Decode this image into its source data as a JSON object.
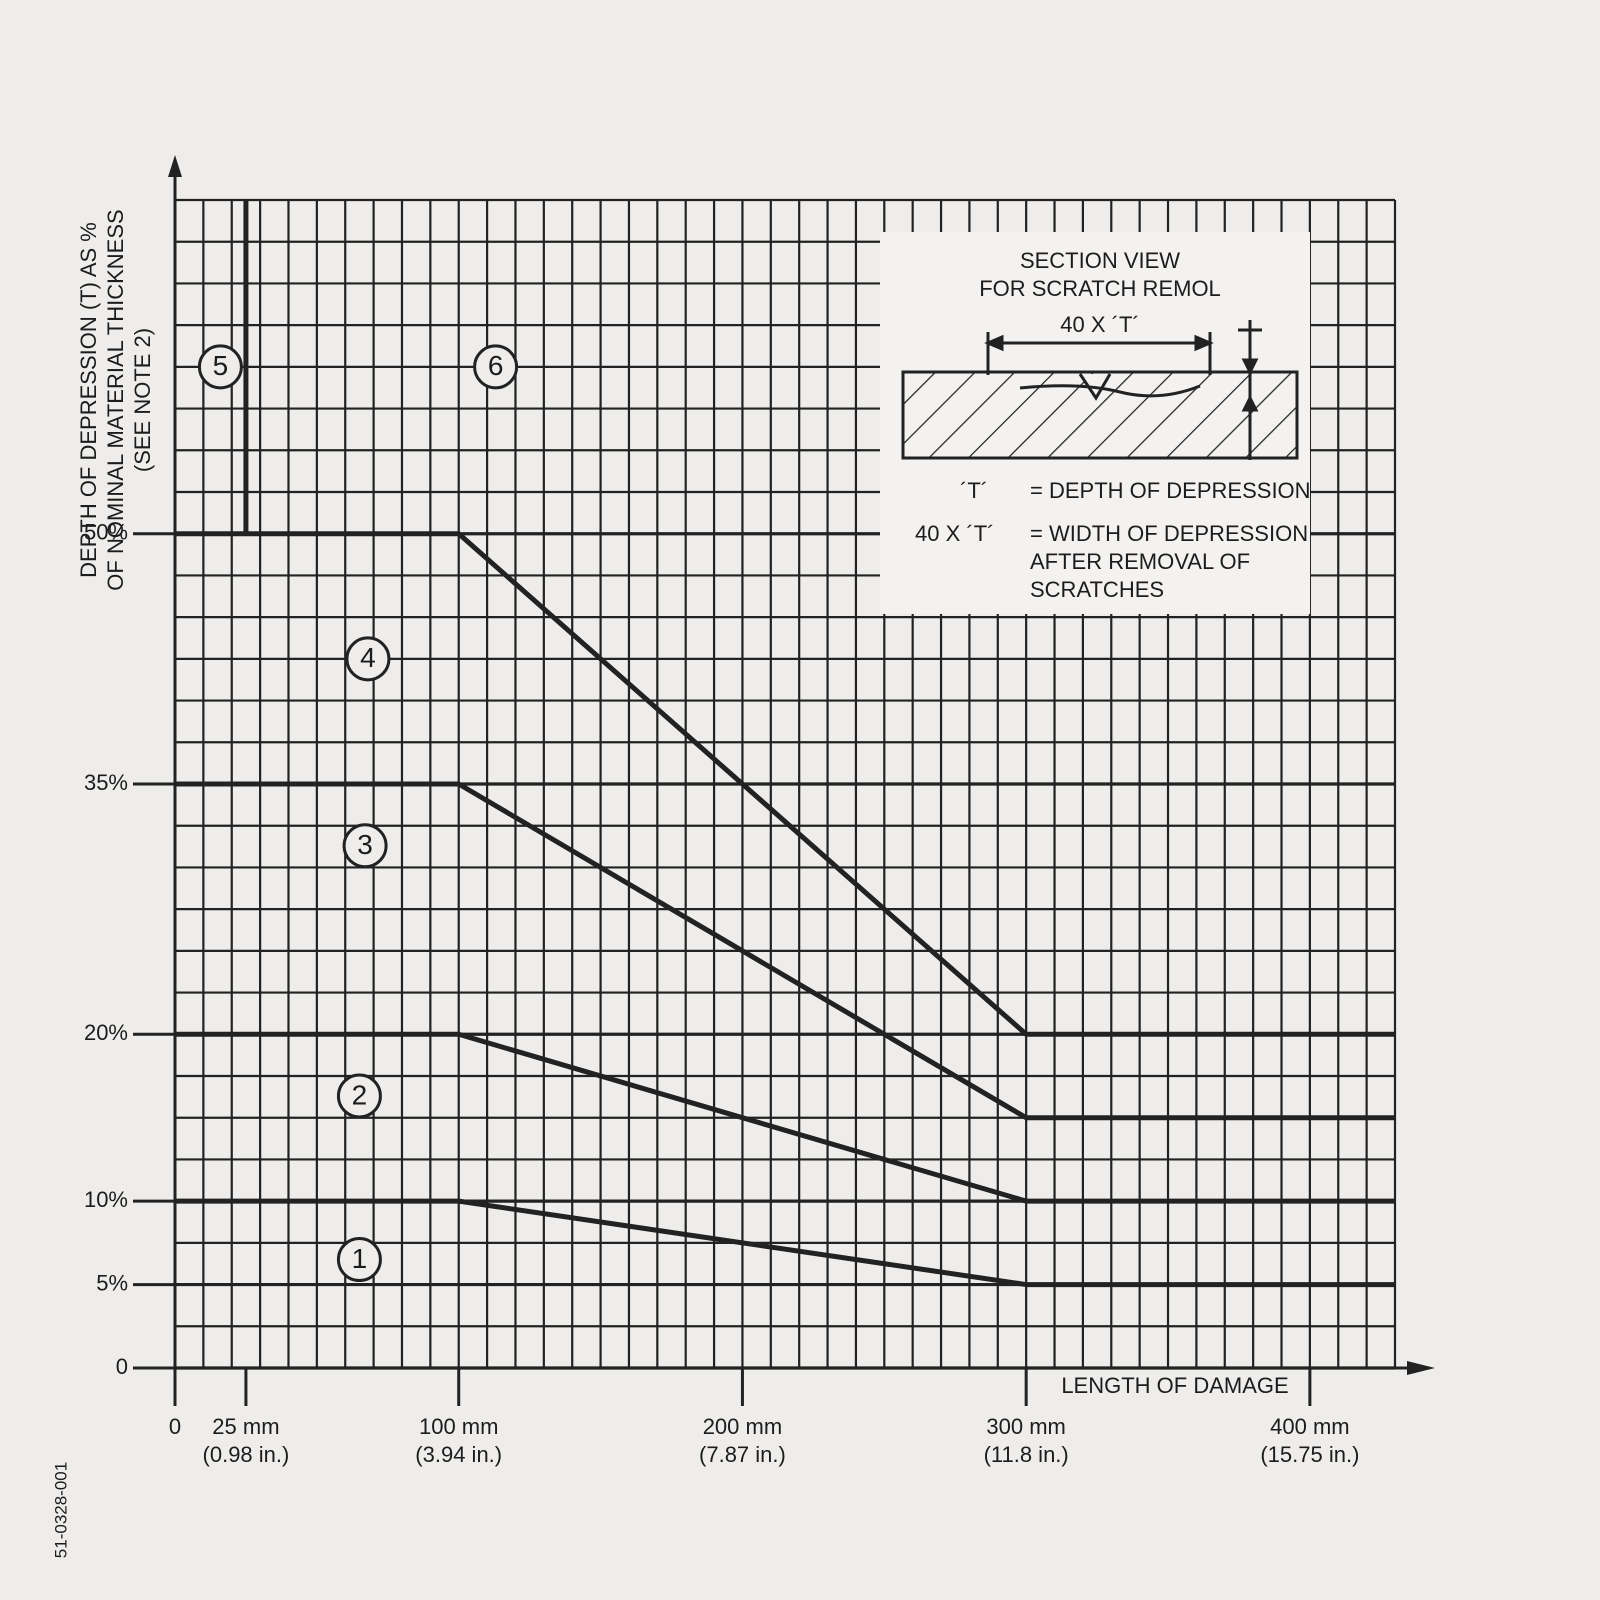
{
  "chart_data": {
    "type": "line",
    "y_axis_title": [
      "DEPTH OF DEPRESSION (T) AS %",
      "OF NOMINAL MATERIAL THICKNESS",
      "(SEE NOTE 2)"
    ],
    "x_axis_title": "LENGTH OF DAMAGE",
    "figure_id": "51-0328-001",
    "xlim": [
      0,
      430
    ],
    "ylim": [
      0,
      70
    ],
    "xticks": [
      0,
      {
        "value": 25,
        "label": "25 mm"
      },
      {
        "value": 100,
        "label": "100 mm"
      },
      {
        "value": 200,
        "label": "200 mm"
      },
      {
        "value": 300,
        "label": "300 mm"
      },
      {
        "value": 400,
        "label": "400 mm"
      }
    ],
    "xtick_inch_labels": [
      null,
      "(0.98 in.)",
      "(3.94 in.)",
      "(7.87 in.)",
      "(11.8 in.)",
      "(15.75 in.)"
    ],
    "yticks": [
      0,
      {
        "value": 5,
        "label": "5%"
      },
      {
        "value": 10,
        "label": "10%"
      },
      {
        "value": 20,
        "label": "20%"
      },
      {
        "value": 35,
        "label": "35%"
      },
      {
        "value": 50,
        "label": "50%"
      }
    ],
    "grid": true,
    "minor_grid": {
      "x_step": 10,
      "y_step": 2.5
    },
    "color": "#222222",
    "series": [
      {
        "x": [
          0,
          100,
          300,
          430
        ],
        "values": [
          10,
          10,
          5,
          5
        ]
      },
      {
        "x": [
          0,
          100,
          300,
          430
        ],
        "values": [
          20,
          20,
          10,
          10
        ]
      },
      {
        "x": [
          0,
          100,
          300,
          430
        ],
        "values": [
          35,
          35,
          15,
          15
        ]
      },
      {
        "x": [
          0,
          100,
          300,
          430
        ],
        "values": [
          50,
          50,
          20,
          20
        ]
      },
      {
        "x": [
          25,
          25
        ],
        "values": [
          50,
          70
        ]
      }
    ],
    "annotations": [
      {
        "text": "1",
        "x": 65,
        "y": 6.5
      },
      {
        "text": "2",
        "x": 65,
        "y": 16.3
      },
      {
        "text": "3",
        "x": 67,
        "y": 31.3
      },
      {
        "text": "4",
        "x": 68,
        "y": 42.5
      },
      {
        "text": "5",
        "x": 16,
        "y": 60
      },
      {
        "text": "6",
        "x": 113,
        "y": 60
      }
    ],
    "inset": {
      "title": [
        "SECTION VIEW",
        "FOR SCRATCH REMOL"
      ],
      "dimension": "40 X ´T´",
      "legend": [
        {
          "key": "´T´",
          "text": "= DEPTH OF DEPRESSION"
        },
        {
          "key": "40 X ´T´",
          "text": "= WIDTH OF DEPRESSION"
        }
      ],
      "legend_cont": [
        "AFTER REMOVAL OF",
        "SCRATCHES"
      ]
    }
  }
}
